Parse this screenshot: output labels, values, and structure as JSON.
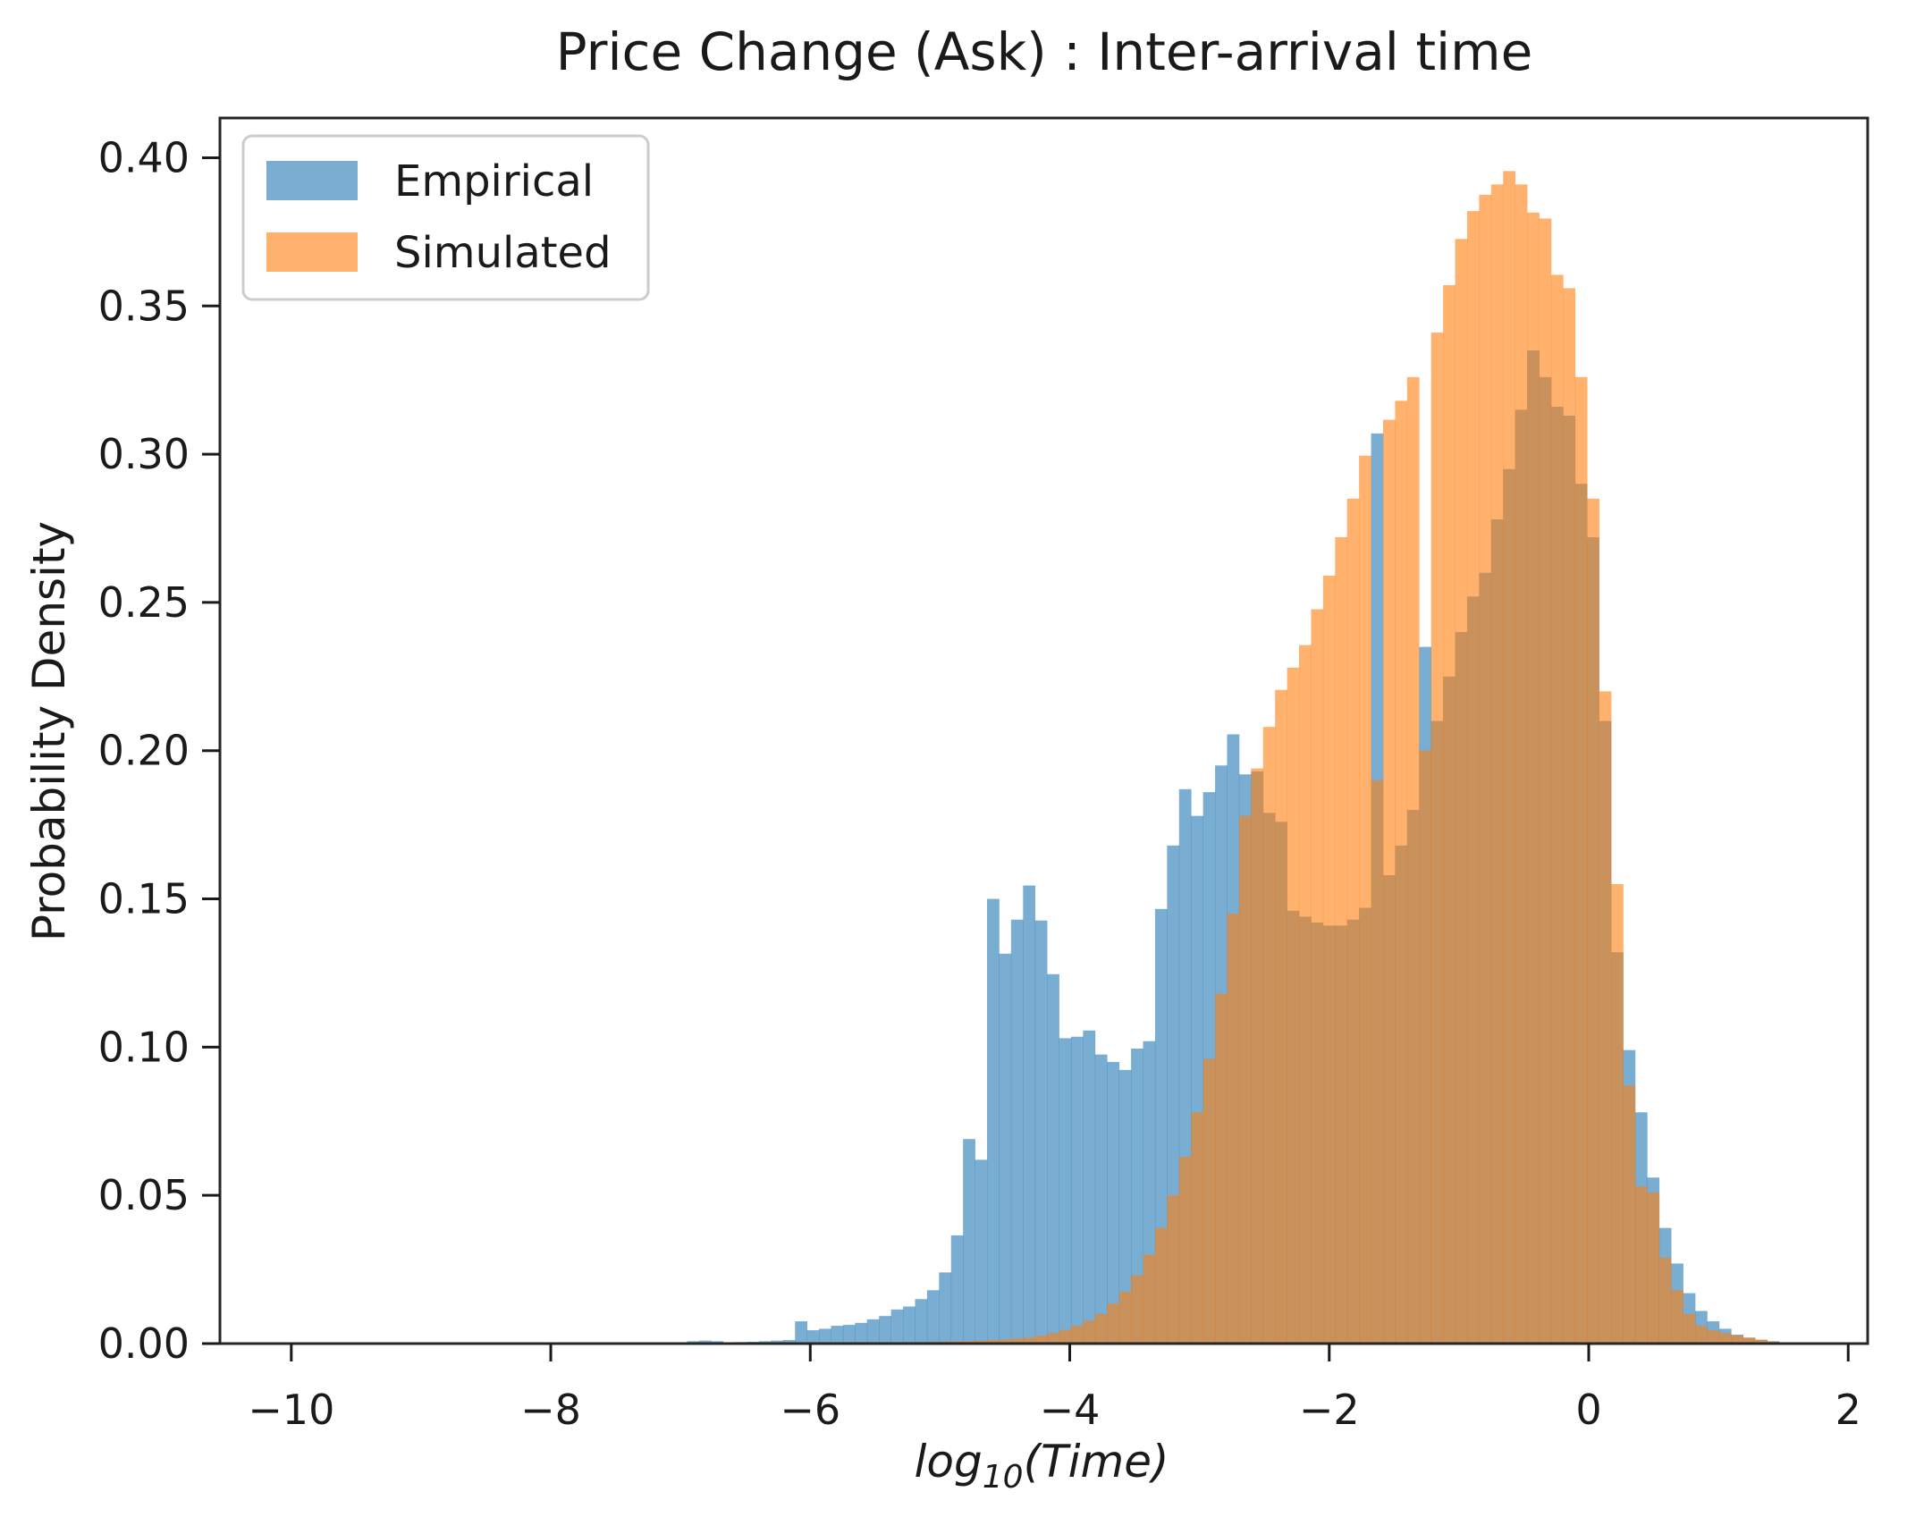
{
  "figure": {
    "title": "Price Change (Ask) : Inter-arrival time",
    "ylabel": "Probability Density",
    "xlabel_prefix": "log",
    "xlabel_sub": "10",
    "xlabel_suffix": "(Time)"
  },
  "legend": {
    "position": "upper left",
    "items": [
      {
        "label": "Empirical",
        "color": "#1f77b4",
        "fill": "rgba(31,119,180,0.6)"
      },
      {
        "label": "Simulated",
        "color": "#ff7f0e",
        "fill": "rgba(255,127,14,0.6)"
      }
    ]
  },
  "axes": {
    "xlim": [
      -10.55,
      2.15
    ],
    "ylim": [
      0,
      0.4134
    ],
    "x_ticks": [
      {
        "value": -10,
        "label": "−10"
      },
      {
        "value": -8,
        "label": "−8"
      },
      {
        "value": -6,
        "label": "−6"
      },
      {
        "value": -4,
        "label": "−4"
      },
      {
        "value": -2,
        "label": "−2"
      },
      {
        "value": 0,
        "label": "0"
      },
      {
        "value": 2,
        "label": "2"
      }
    ],
    "y_ticks": [
      {
        "value": 0.0,
        "label": "0.00"
      },
      {
        "value": 0.05,
        "label": "0.05"
      },
      {
        "value": 0.1,
        "label": "0.10"
      },
      {
        "value": 0.15,
        "label": "0.15"
      },
      {
        "value": 0.2,
        "label": "0.20"
      },
      {
        "value": 0.25,
        "label": "0.25"
      },
      {
        "value": 0.3,
        "label": "0.30"
      },
      {
        "value": 0.35,
        "label": "0.35"
      },
      {
        "value": 0.4,
        "label": "0.40"
      }
    ],
    "spine_color": "#262626",
    "tick_color": "#1a1a1a"
  },
  "chart_data": {
    "type": "bar",
    "subtype": "overlaid-histogram",
    "title": "Price Change (Ask) : Inter-arrival time",
    "xlabel": "log10(Time)",
    "ylabel": "Probability Density",
    "xlim": [
      -10.55,
      2.15
    ],
    "ylim": [
      0,
      0.4134
    ],
    "grid": false,
    "legend_position": "upper left",
    "bin_start": -6.95,
    "bin_width": 0.0925,
    "series": [
      {
        "name": "Empirical",
        "color": "#1f77b4",
        "fill": "rgba(31,119,180,0.6)",
        "values": [
          0.0008,
          0.001,
          0.0008,
          0,
          0.0005,
          0.0006,
          0.0008,
          0.001,
          0.0012,
          0.0075,
          0.0045,
          0.005,
          0.006,
          0.0063,
          0.007,
          0.0082,
          0.0093,
          0.0115,
          0.0125,
          0.015,
          0.018,
          0.024,
          0.0365,
          0.069,
          0.062,
          0.15,
          0.1315,
          0.143,
          0.1545,
          0.1427,
          0.1246,
          0.103,
          0.1035,
          0.1056,
          0.0975,
          0.095,
          0.0923,
          0.0995,
          0.102,
          0.1466,
          0.168,
          0.187,
          0.178,
          0.186,
          0.195,
          0.2055,
          0.192,
          0.193,
          0.179,
          0.176,
          0.146,
          0.144,
          0.142,
          0.141,
          0.141,
          0.143,
          0.147,
          0.307,
          0.158,
          0.168,
          0.18,
          0.235,
          0.21,
          0.225,
          0.24,
          0.252,
          0.26,
          0.278,
          0.295,
          0.315,
          0.335,
          0.326,
          0.316,
          0.313,
          0.29,
          0.272,
          0.21,
          0.132,
          0.099,
          0.078,
          0.056,
          0.039,
          0.027,
          0.017,
          0.011,
          0.0075,
          0.005,
          0.003,
          0.002,
          0.0013,
          0.0008,
          0.0004
        ]
      },
      {
        "name": "Simulated",
        "color": "#ff7f0e",
        "fill": "rgba(255,127,14,0.6)",
        "values": [
          0,
          0,
          0,
          0,
          0,
          0,
          0,
          0,
          0,
          0,
          0,
          0,
          0,
          0,
          0,
          0,
          0.0004,
          0.0004,
          0.0005,
          0.0005,
          0.0006,
          0.0007,
          0.0008,
          0.0009,
          0.001,
          0.0012,
          0.0014,
          0.0017,
          0.002,
          0.0027,
          0.0035,
          0.0046,
          0.006,
          0.0078,
          0.01,
          0.0135,
          0.0175,
          0.023,
          0.03,
          0.039,
          0.05,
          0.063,
          0.078,
          0.096,
          0.118,
          0.145,
          0.178,
          0.194,
          0.208,
          0.2205,
          0.228,
          0.2356,
          0.2477,
          0.259,
          0.272,
          0.285,
          0.2995,
          0.19,
          0.3116,
          0.318,
          0.326,
          0.2,
          0.341,
          0.357,
          0.3726,
          0.382,
          0.3875,
          0.391,
          0.3955,
          0.391,
          0.3815,
          0.3795,
          0.3605,
          0.356,
          0.326,
          0.285,
          0.22,
          0.155,
          0.087,
          0.053,
          0.051,
          0.029,
          0.018,
          0.01,
          0.006,
          0.0045,
          0.0035,
          0.0028,
          0.002,
          0.0013,
          0.0007,
          0.0003
        ]
      }
    ]
  }
}
